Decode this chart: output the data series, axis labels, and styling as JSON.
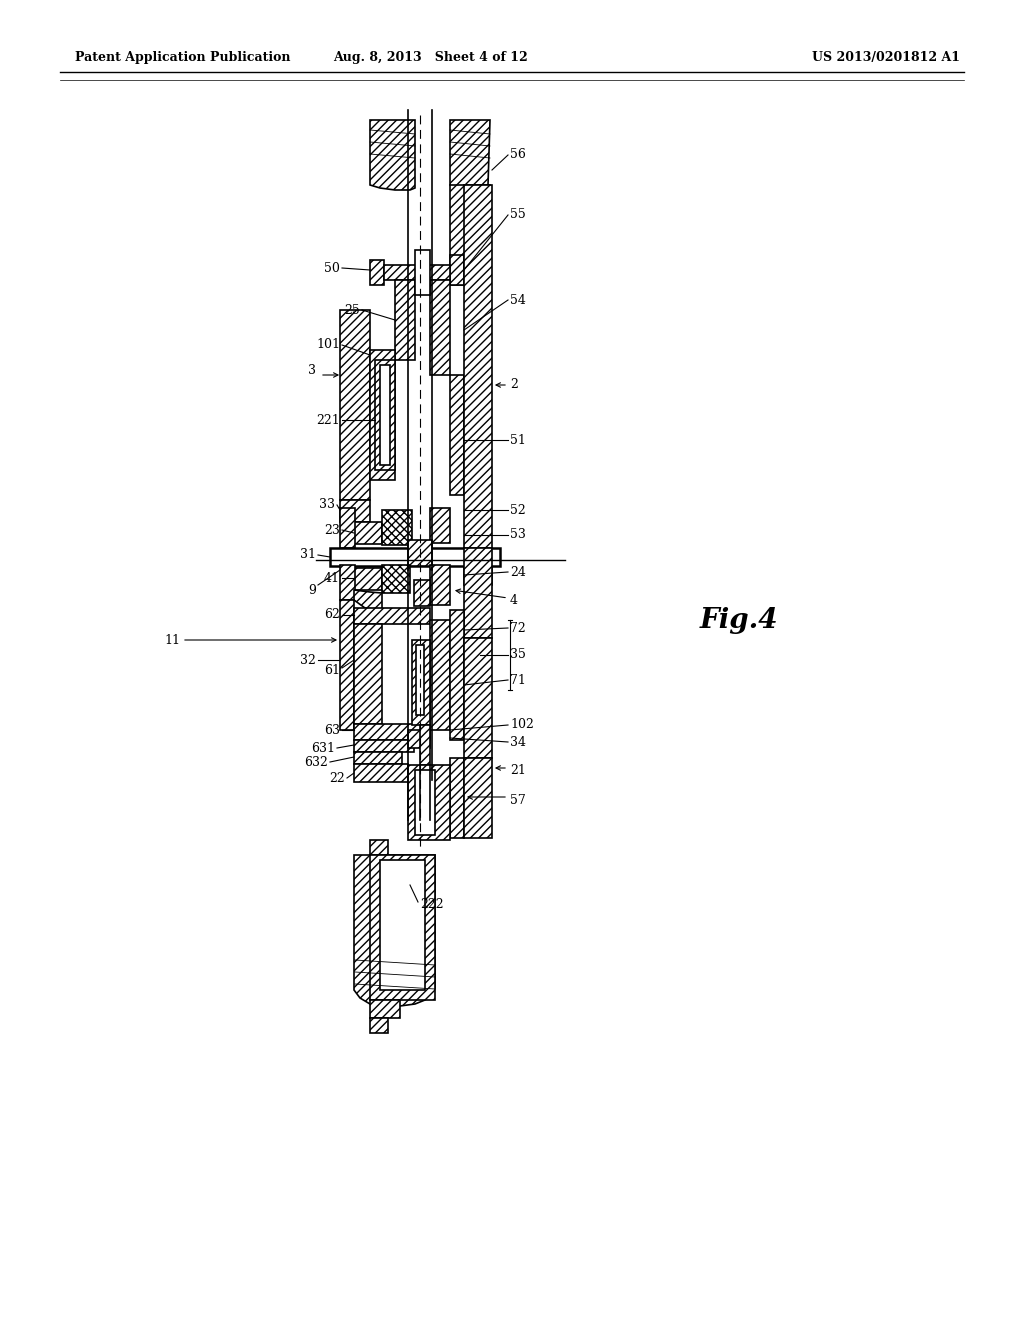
{
  "header_left": "Patent Application Publication",
  "header_mid": "Aug. 8, 2013   Sheet 4 of 12",
  "header_right": "US 2013/0201812 A1",
  "fig_label": "Fig.4",
  "background_color": "#ffffff"
}
